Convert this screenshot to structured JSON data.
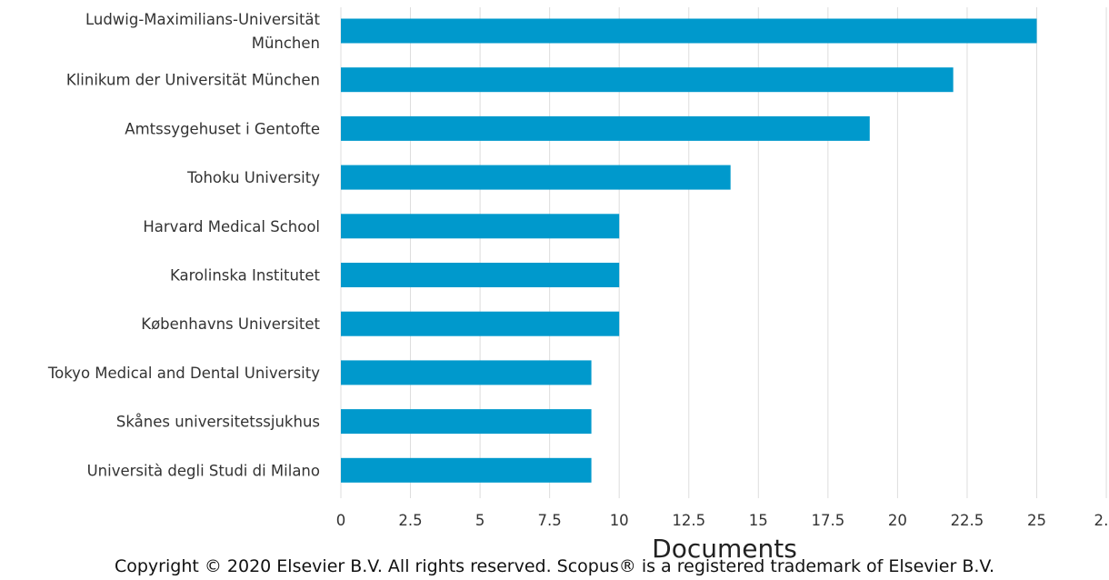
{
  "chart_data": {
    "type": "bar",
    "orientation": "horizontal",
    "categories": [
      "Ludwig-Maximilians-Universität München",
      "Klinikum der Universität München",
      "Amtssygehuset i Gentofte",
      "Tohoku University",
      "Harvard Medical School",
      "Karolinska Institutet",
      "Københavns Universitet",
      "Tokyo Medical and Dental University",
      "Skånes universitetssjukhus",
      "Università degli Studi di Milano"
    ],
    "category_label_lines": [
      [
        "Ludwig-Maximilians-Universität",
        "München"
      ],
      [
        "Klinikum der Universität München"
      ],
      [
        "Amtssygehuset i Gentofte"
      ],
      [
        "Tohoku University"
      ],
      [
        "Harvard Medical School"
      ],
      [
        "Karolinska Institutet"
      ],
      [
        "Københavns Universitet"
      ],
      [
        "Tokyo Medical and Dental University"
      ],
      [
        "Skånes universitetssjukhus"
      ],
      [
        "Università degli Studi di Milano"
      ]
    ],
    "values": [
      25,
      22,
      19,
      14,
      10,
      10,
      10,
      9,
      9,
      9
    ],
    "xlabel": "Documents",
    "ylabel": "",
    "xlim": [
      0,
      27.5
    ],
    "x_ticks": [
      "0",
      "2.5",
      "5",
      "7.5",
      "10",
      "12.5",
      "15",
      "17.5",
      "20",
      "22.5",
      "25",
      "2…"
    ],
    "grid": "vertical",
    "bar_color": "#0099cc"
  },
  "footer": {
    "copyright": "Copyright © 2020 Elsevier B.V. All rights reserved. Scopus® is a registered trademark of Elsevier B.V."
  }
}
